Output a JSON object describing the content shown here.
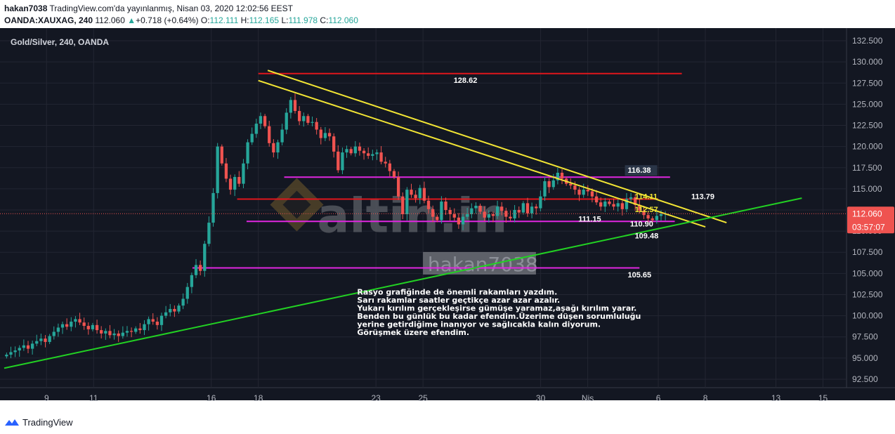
{
  "header": {
    "user": "hakan7038",
    "published": "TradingView.com'da yayınlanmış, Nisan 03, 2020 12:02:56 EEST",
    "symbol_line": "OANDA:XAUXAG, 240",
    "last": "112.060",
    "change_arrow": "▲",
    "change": "+0.718 (+0.64%)",
    "o_label": "O:",
    "o": "112.111",
    "h_label": "H:",
    "h": "112.165",
    "l_label": "L:",
    "l": "111.978",
    "c_label": "C:",
    "c": "112.060"
  },
  "footer": {
    "brand": "TradingView",
    "icon": "tradingview-logo-icon"
  },
  "colors": {
    "bg": "#131722",
    "grid": "#232632",
    "up": "#26a69a",
    "down": "#ef5350",
    "red_line": "#e0161c",
    "magenta_line": "#e026e0",
    "yellow_line": "#f2e534",
    "green_line": "#22d123",
    "axis_text": "#b2b5be",
    "price_tag": "#ef5350"
  },
  "chart_data": {
    "type": "candlestick",
    "title": "Gold/Silver, 240, OANDA",
    "price_ticks": [
      "92.500",
      "95.000",
      "97.500",
      "100.000",
      "102.500",
      "105.000",
      "107.500",
      "110.000",
      "112.500",
      "115.000",
      "117.500",
      "120.000",
      "122.500",
      "125.000",
      "127.500",
      "130.000",
      "132.500"
    ],
    "ylim": [
      91.5,
      133.5
    ],
    "time_ticks": [
      {
        "label": "9",
        "t": 9
      },
      {
        "label": "11",
        "t": 11
      },
      {
        "label": "16",
        "t": 16
      },
      {
        "label": "18",
        "t": 18
      },
      {
        "label": "23",
        "t": 23
      },
      {
        "label": "25",
        "t": 25
      },
      {
        "label": "30",
        "t": 30
      },
      {
        "label": "Nis",
        "t": 32
      },
      {
        "label": "6",
        "t": 35
      },
      {
        "label": "8",
        "t": 37
      },
      {
        "label": "13",
        "t": 40
      },
      {
        "label": "15",
        "t": 42
      }
    ],
    "xlim": [
      7.2,
      43.0
    ],
    "last_price": "112.060",
    "countdown": "03:57:07",
    "closes": [
      95.4,
      95.7,
      95.9,
      96.2,
      96.5,
      96.1,
      96.7,
      97.0,
      97.3,
      96.9,
      97.6,
      98.1,
      98.6,
      99.0,
      98.7,
      99.3,
      99.6,
      99.2,
      98.8,
      98.4,
      98.9,
      98.3,
      97.9,
      98.2,
      97.7,
      97.9,
      97.6,
      98.0,
      98.2,
      98.1,
      98.5,
      98.3,
      99.0,
      99.6,
      99.3,
      98.9,
      100.0,
      100.4,
      100.8,
      100.5,
      101.2,
      102.0,
      103.4,
      104.8,
      106.0,
      105.3,
      108.5,
      111.0,
      114.5,
      120.0,
      118.0,
      116.2,
      114.9,
      116.4,
      115.6,
      118.0,
      120.5,
      121.5,
      122.7,
      123.6,
      122.4,
      120.4,
      119.3,
      120.5,
      122.0,
      124.0,
      125.5,
      124.2,
      123.0,
      123.6,
      122.8,
      122.9,
      122.0,
      121.0,
      121.6,
      121.2,
      119.4,
      117.2,
      119.3,
      119.7,
      119.2,
      120.0,
      119.5,
      119.2,
      118.9,
      119.1,
      119.3,
      118.2,
      118.0,
      117.1,
      116.4,
      114.1,
      112.0,
      114.9,
      114.3,
      113.9,
      115.1,
      113.6,
      112.6,
      111.7,
      111.3,
      113.5,
      112.5,
      112.0,
      111.6,
      110.8,
      111.7,
      112.0,
      112.7,
      113.0,
      112.3,
      111.6,
      112.0,
      111.8,
      112.9,
      112.4,
      111.7,
      111.5,
      112.5,
      112.2,
      113.3,
      112.1,
      112.9,
      112.7,
      114.1,
      115.9,
      115.2,
      116.0,
      116.9,
      116.2,
      115.6,
      115.4,
      114.9,
      114.3,
      114.9,
      114.7,
      114.1,
      113.4,
      112.9,
      113.5,
      113.2,
      112.9,
      113.3,
      112.6,
      113.8,
      114.0,
      113.1,
      112.4,
      111.9,
      111.5,
      111.3,
      111.8,
      112.0,
      112.06
    ],
    "horizontal_levels": [
      {
        "name": "resistance-128-62",
        "price": 128.62,
        "label": "128.62",
        "color": "red"
      },
      {
        "name": "level-116-38",
        "price": 116.38,
        "label": "116.38",
        "color": "magenta"
      },
      {
        "name": "level-113-79",
        "price": 113.79,
        "label": "113.79",
        "color": "red"
      },
      {
        "name": "level-111-15",
        "price": 111.15,
        "label": "111.15",
        "color": "magenta"
      },
      {
        "name": "level-105-65",
        "price": 105.65,
        "label": "105.65",
        "color": "magenta"
      }
    ],
    "trend_lines": [
      {
        "name": "yellow-upper",
        "from": {
          "t": 18.4,
          "p": 129.0
        },
        "to": {
          "t": 37.9,
          "p": 111.0
        },
        "color": "yellow"
      },
      {
        "name": "yellow-lower",
        "from": {
          "t": 18.0,
          "p": 127.8
        },
        "to": {
          "t": 37.0,
          "p": 110.5
        },
        "color": "yellow"
      },
      {
        "name": "green-support",
        "from": {
          "t": 7.2,
          "p": 93.8
        },
        "to": {
          "t": 41.1,
          "p": 113.9
        },
        "color": "green"
      }
    ],
    "annotations": [
      {
        "text": "114.11",
        "t": 34.0,
        "p": 114.11,
        "color": "yellow"
      },
      {
        "text": "112.57",
        "t": 34.0,
        "p": 112.57,
        "color": "yellow"
      },
      {
        "text": "110.90",
        "t": 33.8,
        "p": 110.9,
        "color": "white"
      },
      {
        "text": "109.48",
        "t": 34.0,
        "p": 109.48,
        "color": "white"
      }
    ],
    "note_lines": [
      "Rasyo grafiğinde de önemli rakamları yazdım.",
      "Sarı rakamlar saatler geçtikçe azar azar azalır.",
      "Yukarı kırılım gerçekleşirse gümüşe yaramaz,aşağı kırılım yarar.",
      "Benden bu günlük bu kadar efendim.Üzerime düşen sorumluluğu",
      "yerine getirdiğime inanıyor ve sağlıcakla kalın diyorum.",
      "Görüşmek üzere efendim."
    ],
    "watermarks": {
      "logo_text": "altin.in",
      "author_text": "hakan7038"
    }
  }
}
